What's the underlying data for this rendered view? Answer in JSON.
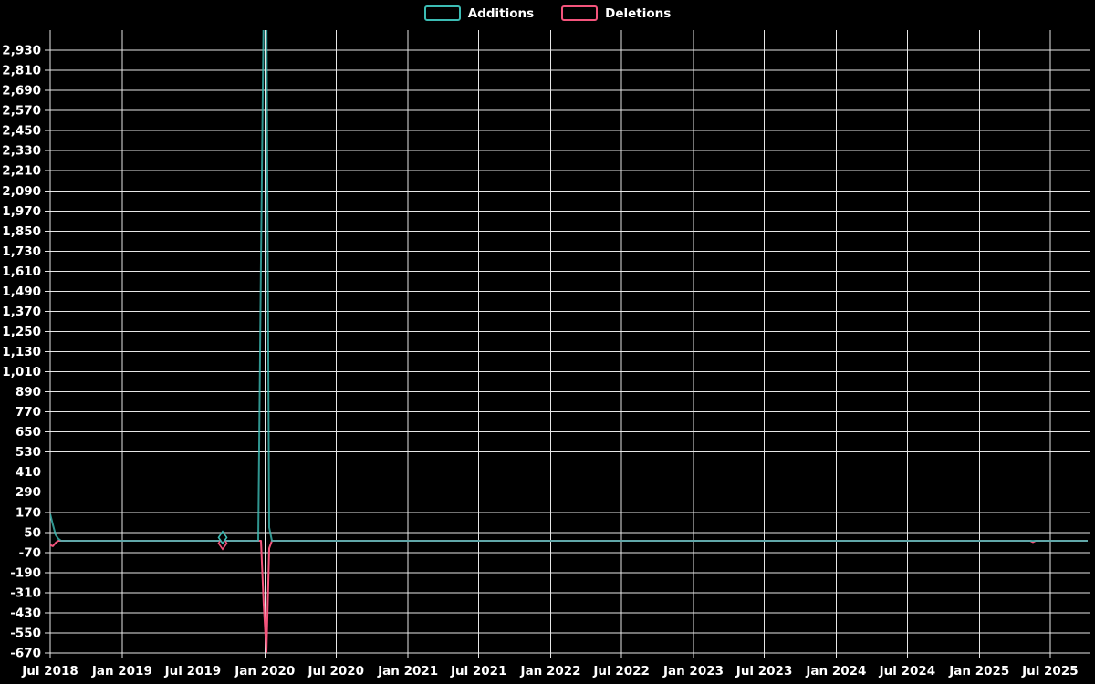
{
  "chart": {
    "background_color": "#000000",
    "grid_color": "#e6e6e6",
    "text_color": "#ffffff"
  },
  "legend": {
    "position": "top-center",
    "items": [
      {
        "label": "Additions",
        "color": "#3cbcb4"
      },
      {
        "label": "Deletions",
        "color": "#f4547c"
      }
    ]
  },
  "chart_data": {
    "type": "line",
    "title": "",
    "grid": true,
    "x_axis": {
      "type": "time",
      "tick_labels": [
        {
          "label": "Jul 2018",
          "date": "2018-07-01"
        },
        {
          "label": "Jan 2019",
          "date": "2019-01-01"
        },
        {
          "label": "Jul 2019",
          "date": "2019-07-01"
        },
        {
          "label": "Jan 2020",
          "date": "2020-01-01"
        },
        {
          "label": "Jul 2020",
          "date": "2020-07-01"
        },
        {
          "label": "Jan 2021",
          "date": "2021-01-01"
        },
        {
          "label": "Jul 2021",
          "date": "2021-07-01"
        },
        {
          "label": "Jan 2022",
          "date": "2022-01-01"
        },
        {
          "label": "Jul 2022",
          "date": "2022-07-01"
        },
        {
          "label": "Jan 2023",
          "date": "2023-01-01"
        },
        {
          "label": "Jul 2023",
          "date": "2023-07-01"
        },
        {
          "label": "Jan 2024",
          "date": "2024-01-01"
        },
        {
          "label": "Jul 2024",
          "date": "2024-07-01"
        },
        {
          "label": "Jan 2025",
          "date": "2025-01-01"
        },
        {
          "label": "Jul 2025",
          "date": "2025-07-01"
        }
      ]
    },
    "y_axis": {
      "min": -670,
      "max": 3050,
      "interval": 120,
      "tick_labels": [
        "-670",
        "-550",
        "-430",
        "-310",
        "-190",
        "-70",
        "50",
        "170",
        "290",
        "410",
        "530",
        "650",
        "770",
        "890",
        "1,010",
        "1,130",
        "1,250",
        "1,370",
        "1,490",
        "1,610",
        "1,730",
        "1,850",
        "1,970",
        "2,090",
        "2,210",
        "2,330",
        "2,450",
        "2,570",
        "2,690",
        "2,810",
        "2,930"
      ]
    },
    "week0_date": "2018-07-01",
    "weeks_total": 380,
    "baseline_value": 0,
    "series": [
      {
        "name": "Additions",
        "color": "#3cbcb4",
        "default_value": 0,
        "points": [
          {
            "date": "2018-07-01",
            "week": 0,
            "value": 160
          },
          {
            "date": "2018-07-08",
            "week": 1,
            "value": 95
          },
          {
            "date": "2018-07-15",
            "week": 2,
            "value": 35
          },
          {
            "date": "2018-07-22",
            "week": 3,
            "value": 12
          },
          {
            "date": "2019-09-15",
            "week": 63,
            "value": 20,
            "marker": "diamond"
          },
          {
            "date": "2019-12-22",
            "week": 77,
            "value": 1670
          },
          {
            "date": "2019-12-29",
            "week": 78,
            "value": 3200,
            "clipped": true
          },
          {
            "date": "2020-01-05",
            "week": 79,
            "value": 3200,
            "clipped": true
          },
          {
            "date": "2020-01-12",
            "week": 80,
            "value": 80
          }
        ]
      },
      {
        "name": "Deletions",
        "color": "#f4547c",
        "default_value": 0,
        "points": [
          {
            "date": "2018-07-01",
            "week": 0,
            "value": -25
          },
          {
            "date": "2018-07-08",
            "week": 1,
            "value": -32
          },
          {
            "date": "2018-07-15",
            "week": 2,
            "value": -12
          },
          {
            "date": "2019-09-15",
            "week": 63,
            "value": -15,
            "marker": "diamond"
          },
          {
            "date": "2019-12-29",
            "week": 78,
            "value": -380
          },
          {
            "date": "2020-01-05",
            "week": 79,
            "value": -665
          },
          {
            "date": "2020-01-12",
            "week": 80,
            "value": -45
          },
          {
            "date": "2025-05-18",
            "week": 359,
            "value": -8
          }
        ]
      }
    ],
    "notes": "Weekly code-frequency data; all weeks not listed in points have value 0. The Additions spike around Jan 2020 exceeds the visible axis maximum and is clipped at the top of the plot."
  }
}
